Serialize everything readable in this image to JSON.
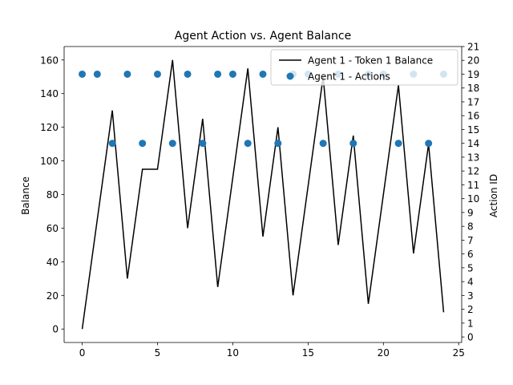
{
  "chart_data": {
    "type": "line+scatter",
    "title": "Agent Action vs. Agent Balance",
    "xlabel": "",
    "ylabel_left": "Balance",
    "ylabel_right": "Action ID",
    "xlim": [
      -1.2,
      25.2
    ],
    "ylim_left": [
      -8,
      168
    ],
    "ylim_right": [
      -0.4,
      21
    ],
    "x_ticks": [
      0,
      5,
      10,
      15,
      20,
      25
    ],
    "y_ticks_left": [
      0,
      20,
      40,
      60,
      80,
      100,
      120,
      140,
      160
    ],
    "y_ticks_right": [
      0,
      1,
      2,
      3,
      4,
      5,
      6,
      7,
      8,
      9,
      10,
      11,
      12,
      13,
      14,
      15,
      16,
      17,
      18,
      19,
      20,
      21
    ],
    "legend_position": "upper-right",
    "series": [
      {
        "name": "Agent 1 - Token 1 Balance",
        "kind": "line",
        "color": "#000000",
        "x": [
          0,
          1,
          2,
          3,
          4,
          5,
          6,
          7,
          8,
          9,
          10,
          11,
          12,
          13,
          14,
          15,
          16,
          17,
          18,
          19,
          20,
          21,
          22,
          23,
          24
        ],
        "y": [
          0,
          65,
          130,
          30,
          95,
          95,
          160,
          60,
          125,
          25,
          90,
          155,
          55,
          120,
          20,
          85,
          150,
          50,
          115,
          15,
          80,
          145,
          45,
          110,
          10
        ]
      },
      {
        "name": "Agent 1 - Actions",
        "kind": "scatter",
        "color": "#1f77b4",
        "x": [
          0,
          1,
          2,
          3,
          4,
          5,
          6,
          7,
          8,
          9,
          10,
          11,
          12,
          13,
          14,
          15,
          16,
          17,
          18,
          19,
          20,
          21,
          22,
          23,
          24
        ],
        "y": [
          19,
          19,
          14,
          19,
          14,
          19,
          14,
          19,
          14,
          19,
          19,
          14,
          19,
          14,
          19,
          19,
          14,
          19,
          14,
          19,
          19,
          14,
          19,
          14,
          19
        ]
      }
    ]
  }
}
